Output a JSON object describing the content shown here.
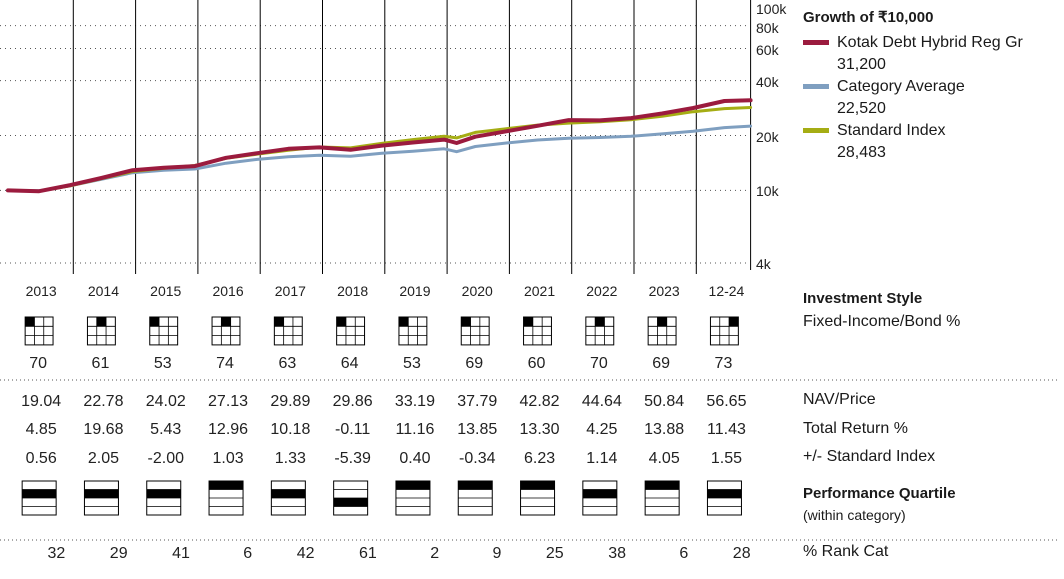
{
  "chart_data": {
    "type": "line",
    "title": "Growth of ₹10,000",
    "y_scale": "log",
    "y_ticks": [
      "100k",
      "80k",
      "60k",
      "40k",
      "20k",
      "10k",
      "4k"
    ],
    "y_tick_values": [
      100000,
      80000,
      60000,
      40000,
      20000,
      10000,
      4000
    ],
    "ylim": [
      4000,
      100000
    ],
    "x_years": [
      "2013",
      "2014",
      "2015",
      "2016",
      "2017",
      "2018",
      "2019",
      "2020",
      "2021",
      "2022",
      "2023",
      "12-24"
    ],
    "x": [
      2013.0,
      2013.5,
      2014.0,
      2014.5,
      2015.0,
      2015.5,
      2016.0,
      2016.5,
      2017.0,
      2017.5,
      2018.0,
      2018.5,
      2019.0,
      2019.5,
      2020.0,
      2020.2,
      2020.5,
      2021.0,
      2021.5,
      2022.0,
      2022.5,
      2023.0,
      2023.5,
      2024.0,
      2024.5,
      2024.92
    ],
    "series": [
      {
        "name": "Kotak Debt Hybrid Reg Gr",
        "color": "#9b1b3e",
        "final_value": "31,200",
        "values": [
          10000,
          9900,
          10700,
          11700,
          12900,
          13300,
          13600,
          15100,
          16000,
          16900,
          17200,
          16700,
          17600,
          18300,
          19000,
          18200,
          19700,
          21100,
          22600,
          24300,
          24200,
          24900,
          26400,
          28300,
          30900,
          31200
        ]
      },
      {
        "name": "Category Average",
        "color": "#7f9fc0",
        "final_value": "22,520",
        "values": [
          10000,
          9950,
          10600,
          11500,
          12500,
          12900,
          13100,
          14100,
          14800,
          15300,
          15600,
          15400,
          16000,
          16400,
          16900,
          16300,
          17400,
          18200,
          18900,
          19300,
          19500,
          19800,
          20400,
          21100,
          22100,
          22520
        ]
      },
      {
        "name": "Standard Index",
        "color": "#a5ad14",
        "final_value": "28,483",
        "values": [
          10000,
          9900,
          10600,
          11600,
          12700,
          13200,
          13700,
          15000,
          15800,
          16600,
          17300,
          17100,
          18100,
          19000,
          19800,
          19400,
          20800,
          21800,
          22800,
          23400,
          23800,
          24400,
          25500,
          27000,
          28100,
          28483
        ]
      }
    ]
  },
  "investment_style": {
    "label": "Investment Style",
    "sublabel": "Fixed-Income/Bond %",
    "style_box_filled_cell": [
      0,
      1,
      0,
      1,
      0,
      0,
      0,
      0,
      0,
      1,
      1,
      2
    ],
    "values": [
      "70",
      "61",
      "53",
      "74",
      "63",
      "64",
      "53",
      "69",
      "60",
      "70",
      "69",
      "73"
    ]
  },
  "table": {
    "rows": [
      {
        "label": "NAV/Price",
        "values": [
          "19.04",
          "22.78",
          "24.02",
          "27.13",
          "29.89",
          "29.86",
          "33.19",
          "37.79",
          "42.82",
          "44.64",
          "50.84",
          "56.65"
        ]
      },
      {
        "label": "Total Return %",
        "values": [
          "4.85",
          "19.68",
          "5.43",
          "12.96",
          "10.18",
          "-0.11",
          "11.16",
          "13.85",
          "13.30",
          "4.25",
          "13.88",
          "11.43"
        ]
      },
      {
        "label": "+/- Standard Index",
        "values": [
          "0.56",
          "2.05",
          "-2.00",
          "1.03",
          "1.33",
          "-5.39",
          "0.40",
          "-0.34",
          "6.23",
          "1.14",
          "4.05",
          "1.55"
        ]
      }
    ]
  },
  "performance_quartile": {
    "label": "Performance Quartile",
    "sublabel": "(within category)",
    "quartiles": [
      2,
      2,
      2,
      1,
      2,
      3,
      1,
      1,
      1,
      2,
      1,
      2
    ]
  },
  "rank": {
    "label": "% Rank Cat",
    "values": [
      "32",
      "29",
      "41",
      "6",
      "42",
      "61",
      "2",
      "9",
      "25",
      "38",
      "6",
      "28"
    ]
  }
}
